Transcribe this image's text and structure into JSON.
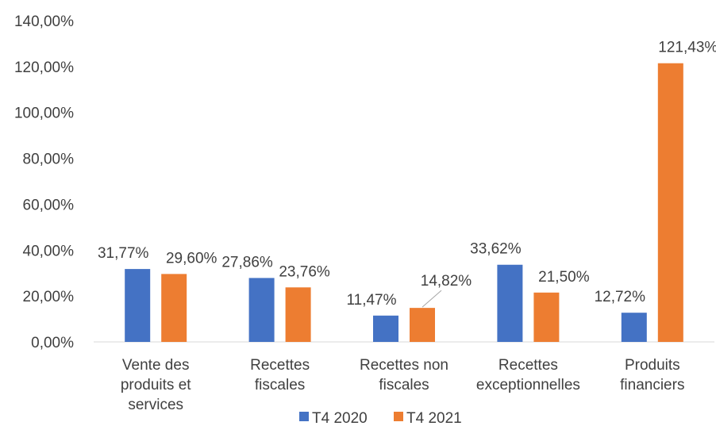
{
  "chart_data": {
    "type": "bar",
    "categories": [
      [
        "Vente des",
        "produits et",
        "services"
      ],
      [
        "Recettes",
        "fiscales"
      ],
      [
        "Recettes non",
        "fiscales"
      ],
      [
        "Recettes",
        "exceptionnelles"
      ],
      [
        "Produits",
        "financiers"
      ]
    ],
    "series": [
      {
        "name": "T4 2020",
        "color": "#4472C4",
        "values": [
          31.77,
          27.86,
          11.47,
          33.62,
          12.72
        ],
        "labels": [
          "31,77%",
          "27,86%",
          "11,47%",
          "33,62%",
          "12,72%"
        ]
      },
      {
        "name": "T4 2021",
        "color": "#ED7D31",
        "values": [
          29.6,
          23.76,
          14.82,
          21.5,
          121.43
        ],
        "labels": [
          "29,60%",
          "23,76%",
          "14,82%",
          "21,50%",
          "121,43%"
        ]
      }
    ],
    "yticks": [
      0,
      20,
      40,
      60,
      80,
      100,
      120,
      140
    ],
    "ytick_labels": [
      "0,00%",
      "20,00%",
      "40,00%",
      "60,00%",
      "80,00%",
      "100,00%",
      "120,00%",
      "140,00%"
    ],
    "ylim": [
      0,
      140
    ],
    "grid": false,
    "legend": "bottom"
  }
}
